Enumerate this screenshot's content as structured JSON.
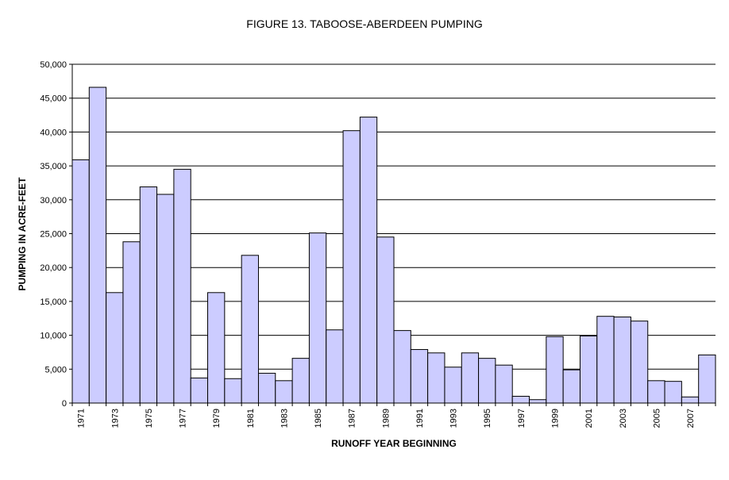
{
  "chart_data": {
    "type": "bar",
    "title": "FIGURE 13. TABOOSE-ABERDEEN PUMPING",
    "xlabel": "RUNOFF YEAR BEGINNING",
    "ylabel": "PUMPING IN ACRE-FEET",
    "ylim": [
      0,
      50000
    ],
    "y_ticks": [
      "0",
      "5,000",
      "10,000",
      "15,000",
      "20,000",
      "25,000",
      "30,000",
      "35,000",
      "40,000",
      "45,000",
      "50,000"
    ],
    "grid": true,
    "bar_color": "#ccccff",
    "categories": [
      "1971",
      "1972",
      "1973",
      "1974",
      "1975",
      "1976",
      "1977",
      "1978",
      "1979",
      "1980",
      "1981",
      "1982",
      "1983",
      "1984",
      "1985",
      "1986",
      "1987",
      "1988",
      "1989",
      "1990",
      "1991",
      "1992",
      "1993",
      "1994",
      "1995",
      "1996",
      "1997",
      "1998",
      "1999",
      "2000",
      "2001",
      "2002",
      "2003",
      "2004",
      "2005",
      "2006",
      "2007",
      "2008"
    ],
    "x_tick_labels": [
      "1971",
      "",
      "1973",
      "",
      "1975",
      "",
      "1977",
      "",
      "1979",
      "",
      "1981",
      "",
      "1983",
      "",
      "1985",
      "",
      "1987",
      "",
      "1989",
      "",
      "1991",
      "",
      "1993",
      "",
      "1995",
      "",
      "1997",
      "",
      "1999",
      "",
      "2001",
      "",
      "2003",
      "",
      "2005",
      "",
      "2007",
      ""
    ],
    "values": [
      35900,
      46600,
      16300,
      23800,
      31900,
      30800,
      34500,
      3700,
      16300,
      3600,
      21800,
      4400,
      3300,
      6600,
      25100,
      10800,
      40200,
      42200,
      24500,
      10700,
      7900,
      7400,
      5300,
      7400,
      6600,
      5600,
      1000,
      500,
      9800,
      4900,
      9900,
      12800,
      12700,
      12100,
      3300,
      3200,
      900,
      7100
    ]
  }
}
